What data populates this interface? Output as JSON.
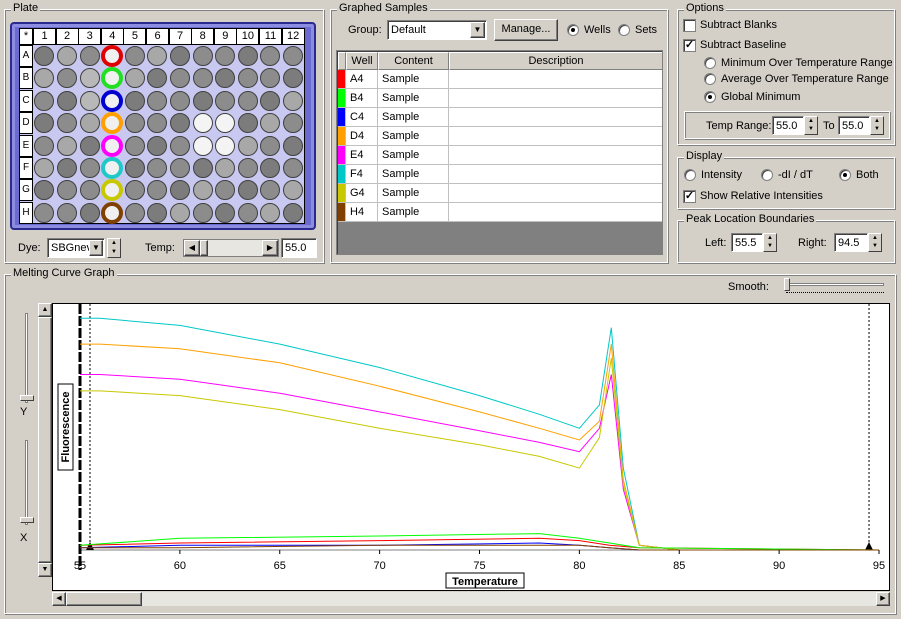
{
  "plate": {
    "title": "Plate",
    "corner": "*",
    "columns": [
      "1",
      "2",
      "3",
      "4",
      "5",
      "6",
      "7",
      "8",
      "9",
      "10",
      "11",
      "12"
    ],
    "rows": [
      "A",
      "B",
      "C",
      "D",
      "E",
      "F",
      "G",
      "H"
    ],
    "dye_label": "Dye:",
    "dye_value": "SBGnev",
    "temp_label": "Temp:",
    "temp_value": "55.0",
    "selected_colors": [
      "#e00000",
      "#20e020",
      "#0000d0",
      "#ffa000",
      "#ff00ff",
      "#20c8c8",
      "#c8c800",
      "#804000"
    ]
  },
  "samples": {
    "title": "Graphed Samples",
    "group_label": "Group:",
    "group_value": "Default",
    "manage_label": "Manage...",
    "wells_label": "Wells",
    "sets_label": "Sets",
    "headers": [
      "Well",
      "Content",
      "Description"
    ],
    "rows": [
      {
        "color": "#ff0000",
        "well": "A4",
        "content": "Sample",
        "description": ""
      },
      {
        "color": "#00ff00",
        "well": "B4",
        "content": "Sample",
        "description": ""
      },
      {
        "color": "#0000ff",
        "well": "C4",
        "content": "Sample",
        "description": ""
      },
      {
        "color": "#ffa000",
        "well": "D4",
        "content": "Sample",
        "description": ""
      },
      {
        "color": "#ff00ff",
        "well": "E4",
        "content": "Sample",
        "description": ""
      },
      {
        "color": "#00c8c8",
        "well": "F4",
        "content": "Sample",
        "description": ""
      },
      {
        "color": "#c8c800",
        "well": "G4",
        "content": "Sample",
        "description": ""
      },
      {
        "color": "#804000",
        "well": "H4",
        "content": "Sample",
        "description": ""
      }
    ]
  },
  "options": {
    "title": "Options",
    "subtract_blanks": "Subtract Blanks",
    "subtract_baseline": "Subtract Baseline",
    "min_over": "Minimum Over Temperature Range",
    "avg_over": "Average Over Temperature Range",
    "global_min": "Global Minimum",
    "temp_range_label": "Temp Range:",
    "temp_from": "55.0",
    "to_label": "To",
    "temp_to": "55.0"
  },
  "display": {
    "title": "Display",
    "intensity": "Intensity",
    "neg_di_dt": "-dI / dT",
    "both": "Both",
    "show_relative": "Show Relative Intensities"
  },
  "peak": {
    "title": "Peak Location Boundaries",
    "left_label": "Left:",
    "left_value": "55.5",
    "right_label": "Right:",
    "right_value": "94.5"
  },
  "graph": {
    "title": "Melting Curve Graph",
    "smooth_label": "Smooth:",
    "y_slider_label": "Y",
    "x_slider_label": "X",
    "ylabel": "Fluorescence",
    "xlabel": "Temperature",
    "xticks": [
      "55",
      "60",
      "65",
      "70",
      "75",
      "80",
      "85",
      "90",
      "95"
    ]
  },
  "chart_data": {
    "type": "line",
    "xlabel": "Temperature",
    "ylabel": "Fluorescence",
    "xlim": [
      55,
      95
    ],
    "ylim": [
      0,
      1
    ],
    "series": [
      {
        "color": "#00c8c8",
        "x": [
          55,
          56,
          60,
          65,
          70,
          75,
          78,
          80,
          81,
          81.6,
          82.2,
          83,
          85,
          95
        ],
        "y": [
          0.99,
          0.99,
          0.96,
          0.88,
          0.78,
          0.66,
          0.58,
          0.52,
          0.62,
          0.95,
          0.35,
          0.02,
          0,
          0
        ]
      },
      {
        "color": "#ffa000",
        "x": [
          55,
          56,
          60,
          65,
          70,
          75,
          78,
          80,
          81,
          81.6,
          82.2,
          83,
          85,
          95
        ],
        "y": [
          0.88,
          0.88,
          0.86,
          0.8,
          0.7,
          0.59,
          0.52,
          0.47,
          0.55,
          0.88,
          0.3,
          0.02,
          0,
          0
        ]
      },
      {
        "color": "#ff00ff",
        "x": [
          55,
          56,
          60,
          65,
          70,
          75,
          78,
          80,
          81,
          81.6,
          82.2,
          83,
          85,
          95
        ],
        "y": [
          0.75,
          0.75,
          0.73,
          0.67,
          0.59,
          0.51,
          0.46,
          0.42,
          0.52,
          0.75,
          0.26,
          0.02,
          0,
          0
        ]
      },
      {
        "color": "#c8c800",
        "x": [
          55,
          56,
          60,
          65,
          70,
          75,
          78,
          80,
          81,
          81.6,
          82.2,
          83,
          85,
          95
        ],
        "y": [
          0.68,
          0.68,
          0.66,
          0.6,
          0.52,
          0.45,
          0.4,
          0.35,
          0.48,
          0.82,
          0.28,
          0.02,
          0,
          0
        ]
      },
      {
        "color": "#ff0000",
        "x": [
          55,
          60,
          70,
          78,
          80,
          81.5,
          83,
          95
        ],
        "y": [
          0.02,
          0.03,
          0.04,
          0.05,
          0.04,
          0.02,
          0.01,
          0
        ]
      },
      {
        "color": "#00ff00",
        "x": [
          55,
          60,
          70,
          78,
          80,
          81.5,
          83,
          95
        ],
        "y": [
          0.02,
          0.05,
          0.06,
          0.07,
          0.05,
          0.03,
          0.01,
          0
        ]
      },
      {
        "color": "#0000ff",
        "x": [
          55,
          60,
          70,
          78,
          80,
          81.5,
          83,
          95
        ],
        "y": [
          0.01,
          0.02,
          0.02,
          0.03,
          0.02,
          0.01,
          0,
          0
        ]
      },
      {
        "color": "#804000",
        "x": [
          55,
          60,
          70,
          78,
          80,
          81.5,
          83,
          95
        ],
        "y": [
          0.01,
          0.01,
          0.02,
          0.02,
          0.02,
          0.01,
          0,
          0
        ]
      }
    ],
    "boundaries": [
      55.5,
      94.5
    ]
  }
}
